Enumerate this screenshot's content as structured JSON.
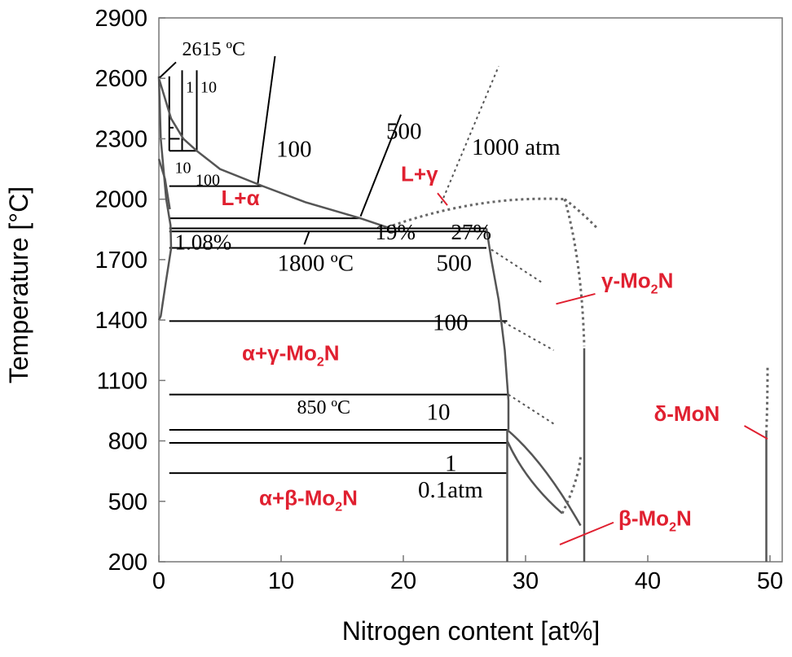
{
  "chart_data": {
    "type": "phase-diagram",
    "xlabel": "Nitrogen content [at%]",
    "ylabel": "Temperature [°C]",
    "xlim": [
      0,
      51
    ],
    "ylim": [
      200,
      2900
    ],
    "x_ticks": [
      "0",
      "10",
      "20",
      "30",
      "40",
      "50"
    ],
    "y_ticks": [
      "2900",
      "2600",
      "2300",
      "2000",
      "1700",
      "1400",
      "1100",
      "800",
      "500",
      "200"
    ],
    "phase_labels": [
      {
        "id": "l_alpha",
        "text": "L+α",
        "x": 5.1,
        "y": 1970
      },
      {
        "id": "l_gamma",
        "text": "L+γ",
        "x": 19.8,
        "y": 2090
      },
      {
        "id": "gamma_mo2n",
        "prefix": "γ-Mo",
        "sub": "2",
        "suffix": "N",
        "x": 36.2,
        "y": 1560
      },
      {
        "id": "alpha_gamma",
        "prefix": "α+γ-Mo",
        "sub": "2",
        "suffix": "N",
        "x": 6.8,
        "y": 1200
      },
      {
        "id": "delta_mon",
        "text": "δ-MoN",
        "x": 40.5,
        "y": 900
      },
      {
        "id": "alpha_beta",
        "prefix": "α+β-Mo",
        "sub": "2",
        "suffix": "N",
        "x": 8.2,
        "y": 480
      },
      {
        "id": "beta_mo2n",
        "prefix": "β-Mo",
        "sub": "2",
        "suffix": "N",
        "x": 37.6,
        "y": 380
      }
    ],
    "annotations": [
      {
        "id": "t2615",
        "text": "2615 ºC",
        "x": 1.9,
        "y": 2715,
        "size": 24
      },
      {
        "id": "p1_top",
        "text": "1",
        "x": 2.2,
        "y": 2530,
        "size": 20
      },
      {
        "id": "p10_top",
        "text": "10",
        "x": 3.4,
        "y": 2530,
        "size": 20
      },
      {
        "id": "p100_liq",
        "text": "100",
        "x": 9.6,
        "y": 2210,
        "size": 29
      },
      {
        "id": "p500_liq",
        "text": "500",
        "x": 18.6,
        "y": 2300,
        "size": 29
      },
      {
        "id": "p1000",
        "text": "1000 atm",
        "x": 25.6,
        "y": 2220,
        "size": 29
      },
      {
        "id": "p10_low",
        "text": "10",
        "x": 1.3,
        "y": 2130,
        "size": 20
      },
      {
        "id": "p100_low",
        "text": "100",
        "x": 3.0,
        "y": 2070,
        "size": 20
      },
      {
        "id": "c108",
        "text": "1.08%",
        "x": 1.3,
        "y": 1750,
        "size": 27
      },
      {
        "id": "c19",
        "text": "19%",
        "x": 17.7,
        "y": 1800,
        "size": 27
      },
      {
        "id": "c27",
        "text": "27%",
        "x": 23.9,
        "y": 1800,
        "size": 27
      },
      {
        "id": "t1800",
        "text": "1800 ºC",
        "x": 9.7,
        "y": 1645,
        "size": 29
      },
      {
        "id": "p500_solid",
        "text": "500",
        "x": 22.7,
        "y": 1645,
        "size": 29
      },
      {
        "id": "p100_solid",
        "text": "100",
        "x": 22.4,
        "y": 1350,
        "size": 29
      },
      {
        "id": "t850",
        "text": "850 ºC",
        "x": 11.3,
        "y": 935,
        "size": 24
      },
      {
        "id": "p10_solid",
        "text": "10",
        "x": 21.9,
        "y": 905,
        "size": 29
      },
      {
        "id": "p1_solid",
        "text": "1",
        "x": 23.4,
        "y": 650,
        "size": 29
      },
      {
        "id": "p01",
        "text": "0.1atm",
        "x": 21.2,
        "y": 520,
        "size": 29
      }
    ],
    "isobars_atm": [
      "0.1",
      "1",
      "10",
      "100",
      "500",
      "1000"
    ],
    "solidus_lines": [
      {
        "x": [
          0.85,
          28.5
        ],
        "y": [
          640,
          640
        ]
      },
      {
        "x": [
          0.85,
          28.5
        ],
        "y": [
          790,
          790
        ]
      },
      {
        "x": [
          0.85,
          28.5
        ],
        "y": [
          855,
          855
        ]
      },
      {
        "x": [
          0.85,
          28.5
        ],
        "y": [
          1030,
          1030
        ]
      },
      {
        "x": [
          0.85,
          28.5
        ],
        "y": [
          1395,
          1395
        ]
      },
      {
        "x": [
          0.85,
          26.8
        ],
        "y": [
          1758,
          1758
        ]
      },
      {
        "x": [
          0.85,
          26.8
        ],
        "y": [
          1840,
          1840
        ]
      },
      {
        "x": [
          0.85,
          26.8
        ],
        "y": [
          1855,
          1855
        ]
      },
      {
        "x": [
          0.85,
          16.5
        ],
        "y": [
          1905,
          1905
        ]
      },
      {
        "x": [
          0.85,
          8.5
        ],
        "y": [
          2065,
          2065
        ]
      },
      {
        "x": [
          0.85,
          3.1
        ],
        "y": [
          2240,
          2240
        ]
      },
      {
        "x": [
          0.85,
          1.7
        ],
        "y": [
          2300,
          2300
        ]
      },
      {
        "x": [
          0.85,
          1.2
        ],
        "y": [
          2355,
          2355
        ]
      }
    ],
    "vertical_lines": [
      {
        "x": [
          28.5,
          28.5
        ],
        "y": [
          200,
          855
        ]
      },
      {
        "x": [
          34.8,
          34.8
        ],
        "y": [
          200,
          1260
        ]
      },
      {
        "x": [
          49.7,
          49.7
        ],
        "y": [
          200,
          840
        ]
      }
    ]
  }
}
